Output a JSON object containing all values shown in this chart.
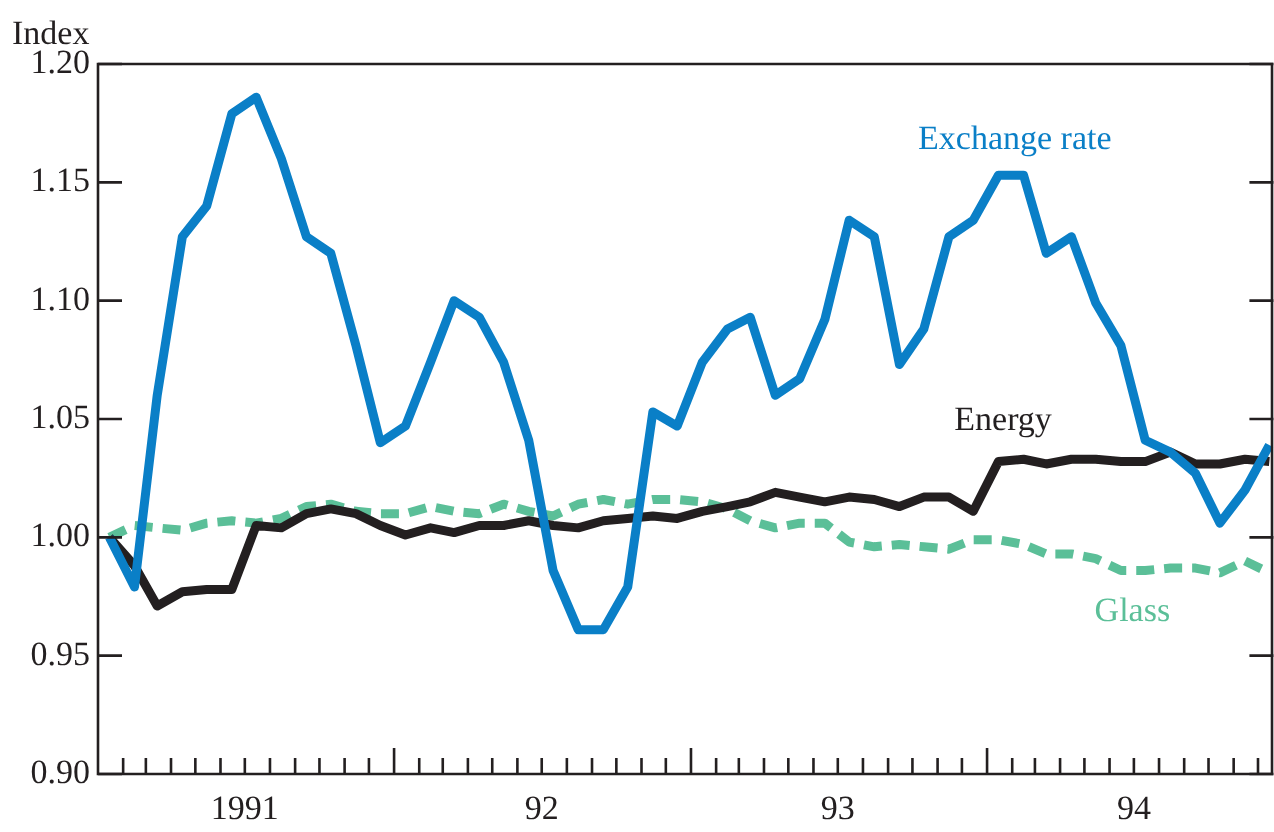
{
  "chart_data": {
    "type": "line",
    "ylabel": "Index",
    "marker": "none",
    "legend": false,
    "grid": false,
    "x": [
      "1991-01-15",
      "1991-02-15",
      "1991-03-15",
      "1991-04-15",
      "1991-05-15",
      "1991-06-15",
      "1991-07-15",
      "1991-08-15",
      "1991-09-15",
      "1991-10-15",
      "1991-11-15",
      "1991-12-15",
      "1992-01-15",
      "1992-02-15",
      "1992-03-15",
      "1992-04-15",
      "1992-05-15",
      "1992-06-15",
      "1992-07-15",
      "1992-08-15",
      "1992-09-15",
      "1992-10-15",
      "1992-11-15",
      "1992-12-15",
      "1993-01-15",
      "1993-02-15",
      "1993-03-15",
      "1993-04-15",
      "1993-05-15",
      "1993-06-15",
      "1993-07-15",
      "1993-08-15",
      "1993-09-15",
      "1993-10-15",
      "1993-11-15",
      "1993-12-15",
      "1994-01-15",
      "1994-02-15",
      "1994-03-15",
      "1994-04-15",
      "1994-05-15",
      "1994-06-15",
      "1994-07-15",
      "1994-08-15",
      "1994-09-15",
      "1994-10-15",
      "1994-11-15",
      "1994-12-15"
    ],
    "series": [
      {
        "name": "Exchange rate",
        "color": "#0a7fc7",
        "line_style": "solid",
        "values": [
          1.0,
          0.979,
          1.06,
          1.127,
          1.14,
          1.179,
          1.186,
          1.16,
          1.127,
          1.12,
          1.081,
          1.04,
          1.047,
          1.074,
          1.1,
          1.093,
          1.074,
          1.041,
          0.986,
          0.961,
          0.961,
          0.979,
          1.053,
          1.047,
          1.074,
          1.088,
          1.093,
          1.06,
          1.067,
          1.092,
          1.134,
          1.127,
          1.073,
          1.088,
          1.127,
          1.134,
          1.153,
          1.153,
          1.12,
          1.127,
          1.099,
          1.081,
          1.041,
          1.036,
          1.027,
          1.006,
          1.02,
          1.039
        ]
      },
      {
        "name": "Energy",
        "color": "#231f20",
        "line_style": "solid",
        "values": [
          1.0,
          0.988,
          0.971,
          0.977,
          0.978,
          0.978,
          1.005,
          1.004,
          1.01,
          1.012,
          1.01,
          1.005,
          1.001,
          1.004,
          1.002,
          1.005,
          1.005,
          1.007,
          1.005,
          1.004,
          1.007,
          1.008,
          1.009,
          1.008,
          1.011,
          1.013,
          1.015,
          1.019,
          1.017,
          1.015,
          1.017,
          1.016,
          1.013,
          1.017,
          1.017,
          1.011,
          1.032,
          1.033,
          1.031,
          1.033,
          1.033,
          1.032,
          1.032,
          1.036,
          1.031,
          1.031,
          1.033,
          1.032
        ]
      },
      {
        "name": "Glass",
        "color": "#5bbf98",
        "line_style": "dashed",
        "values": [
          1.0,
          1.005,
          1.004,
          1.003,
          1.006,
          1.007,
          1.006,
          1.008,
          1.013,
          1.014,
          1.011,
          1.01,
          1.01,
          1.013,
          1.011,
          1.01,
          1.014,
          1.011,
          1.009,
          1.014,
          1.016,
          1.014,
          1.016,
          1.016,
          1.015,
          1.012,
          1.007,
          1.004,
          1.006,
          1.006,
          0.998,
          0.996,
          0.997,
          0.996,
          0.995,
          0.999,
          0.999,
          0.997,
          0.993,
          0.993,
          0.991,
          0.986,
          0.986,
          0.987,
          0.987,
          0.985,
          0.99,
          0.985
        ]
      }
    ],
    "xlim": [
      "1991-01-01",
      "1994-12-20"
    ],
    "xticks": [
      {
        "value": "1991-02-01",
        "label": null
      },
      {
        "value": "1991-03-01",
        "label": null
      },
      {
        "value": "1991-04-01",
        "label": null
      },
      {
        "value": "1991-05-01",
        "label": null
      },
      {
        "value": "1991-06-01",
        "label": null
      },
      {
        "value": "1991-07-01",
        "label": "1991"
      },
      {
        "value": "1991-08-01",
        "label": null
      },
      {
        "value": "1991-09-01",
        "label": null
      },
      {
        "value": "1991-10-01",
        "label": null
      },
      {
        "value": "1991-11-01",
        "label": null
      },
      {
        "value": "1991-12-01",
        "label": null
      },
      {
        "value": "1992-01-01",
        "label": null
      },
      {
        "value": "1992-02-01",
        "label": null
      },
      {
        "value": "1992-03-01",
        "label": null
      },
      {
        "value": "1992-04-01",
        "label": null
      },
      {
        "value": "1992-05-01",
        "label": null
      },
      {
        "value": "1992-06-01",
        "label": null
      },
      {
        "value": "1992-07-01",
        "label": "92"
      },
      {
        "value": "1992-08-01",
        "label": null
      },
      {
        "value": "1992-09-01",
        "label": null
      },
      {
        "value": "1992-10-01",
        "label": null
      },
      {
        "value": "1992-11-01",
        "label": null
      },
      {
        "value": "1992-12-01",
        "label": null
      },
      {
        "value": "1993-01-01",
        "label": null
      },
      {
        "value": "1993-02-01",
        "label": null
      },
      {
        "value": "1993-03-01",
        "label": null
      },
      {
        "value": "1993-04-01",
        "label": null
      },
      {
        "value": "1993-05-01",
        "label": null
      },
      {
        "value": "1993-06-01",
        "label": null
      },
      {
        "value": "1993-07-01",
        "label": "93"
      },
      {
        "value": "1993-08-01",
        "label": null
      },
      {
        "value": "1993-09-01",
        "label": null
      },
      {
        "value": "1993-10-01",
        "label": null
      },
      {
        "value": "1993-11-01",
        "label": null
      },
      {
        "value": "1993-12-01",
        "label": null
      },
      {
        "value": "1994-01-01",
        "label": null
      },
      {
        "value": "1994-02-01",
        "label": null
      },
      {
        "value": "1994-03-01",
        "label": null
      },
      {
        "value": "1994-04-01",
        "label": null
      },
      {
        "value": "1994-05-01",
        "label": null
      },
      {
        "value": "1994-06-01",
        "label": null
      },
      {
        "value": "1994-07-01",
        "label": "94"
      },
      {
        "value": "1994-08-01",
        "label": null
      },
      {
        "value": "1994-09-01",
        "label": null
      },
      {
        "value": "1994-10-01",
        "label": null
      },
      {
        "value": "1994-11-01",
        "label": null
      },
      {
        "value": "1994-12-01",
        "label": null
      }
    ],
    "ylim": [
      0.9,
      1.2
    ],
    "yticks": [
      {
        "value": 0.9,
        "label": "0.90"
      },
      {
        "value": 0.95,
        "label": "0.95"
      },
      {
        "value": 1.0,
        "label": "1.00"
      },
      {
        "value": 1.05,
        "label": "1.05"
      },
      {
        "value": 1.1,
        "label": "1.10"
      },
      {
        "value": 1.15,
        "label": "1.15"
      },
      {
        "value": 1.2,
        "label": "1.20"
      }
    ]
  }
}
